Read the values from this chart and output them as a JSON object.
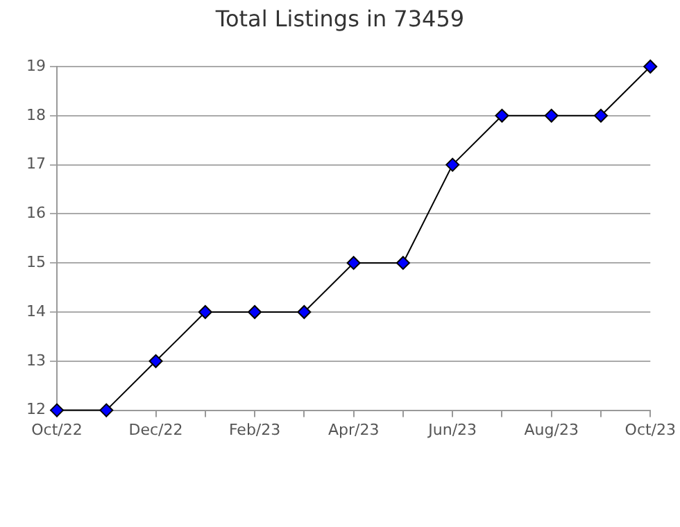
{
  "chart_data": {
    "type": "line",
    "title": "Total Listings in 73459",
    "categories": [
      "Oct/22",
      null,
      "Dec/22",
      null,
      "Feb/23",
      null,
      "Apr/23",
      null,
      "Jun/23",
      null,
      "Aug/23",
      null,
      "Oct/23"
    ],
    "series": [
      {
        "color": "#0000ff",
        "values": [
          12,
          12,
          13,
          14,
          14,
          14,
          15,
          15,
          17,
          18,
          18,
          18,
          19
        ]
      }
    ],
    "ylim": [
      12,
      19
    ],
    "yticks": [
      12,
      13,
      14,
      15,
      16,
      17,
      18,
      19
    ],
    "grid": "y",
    "legend": false,
    "marker": "diamond",
    "line_style": "solid"
  }
}
